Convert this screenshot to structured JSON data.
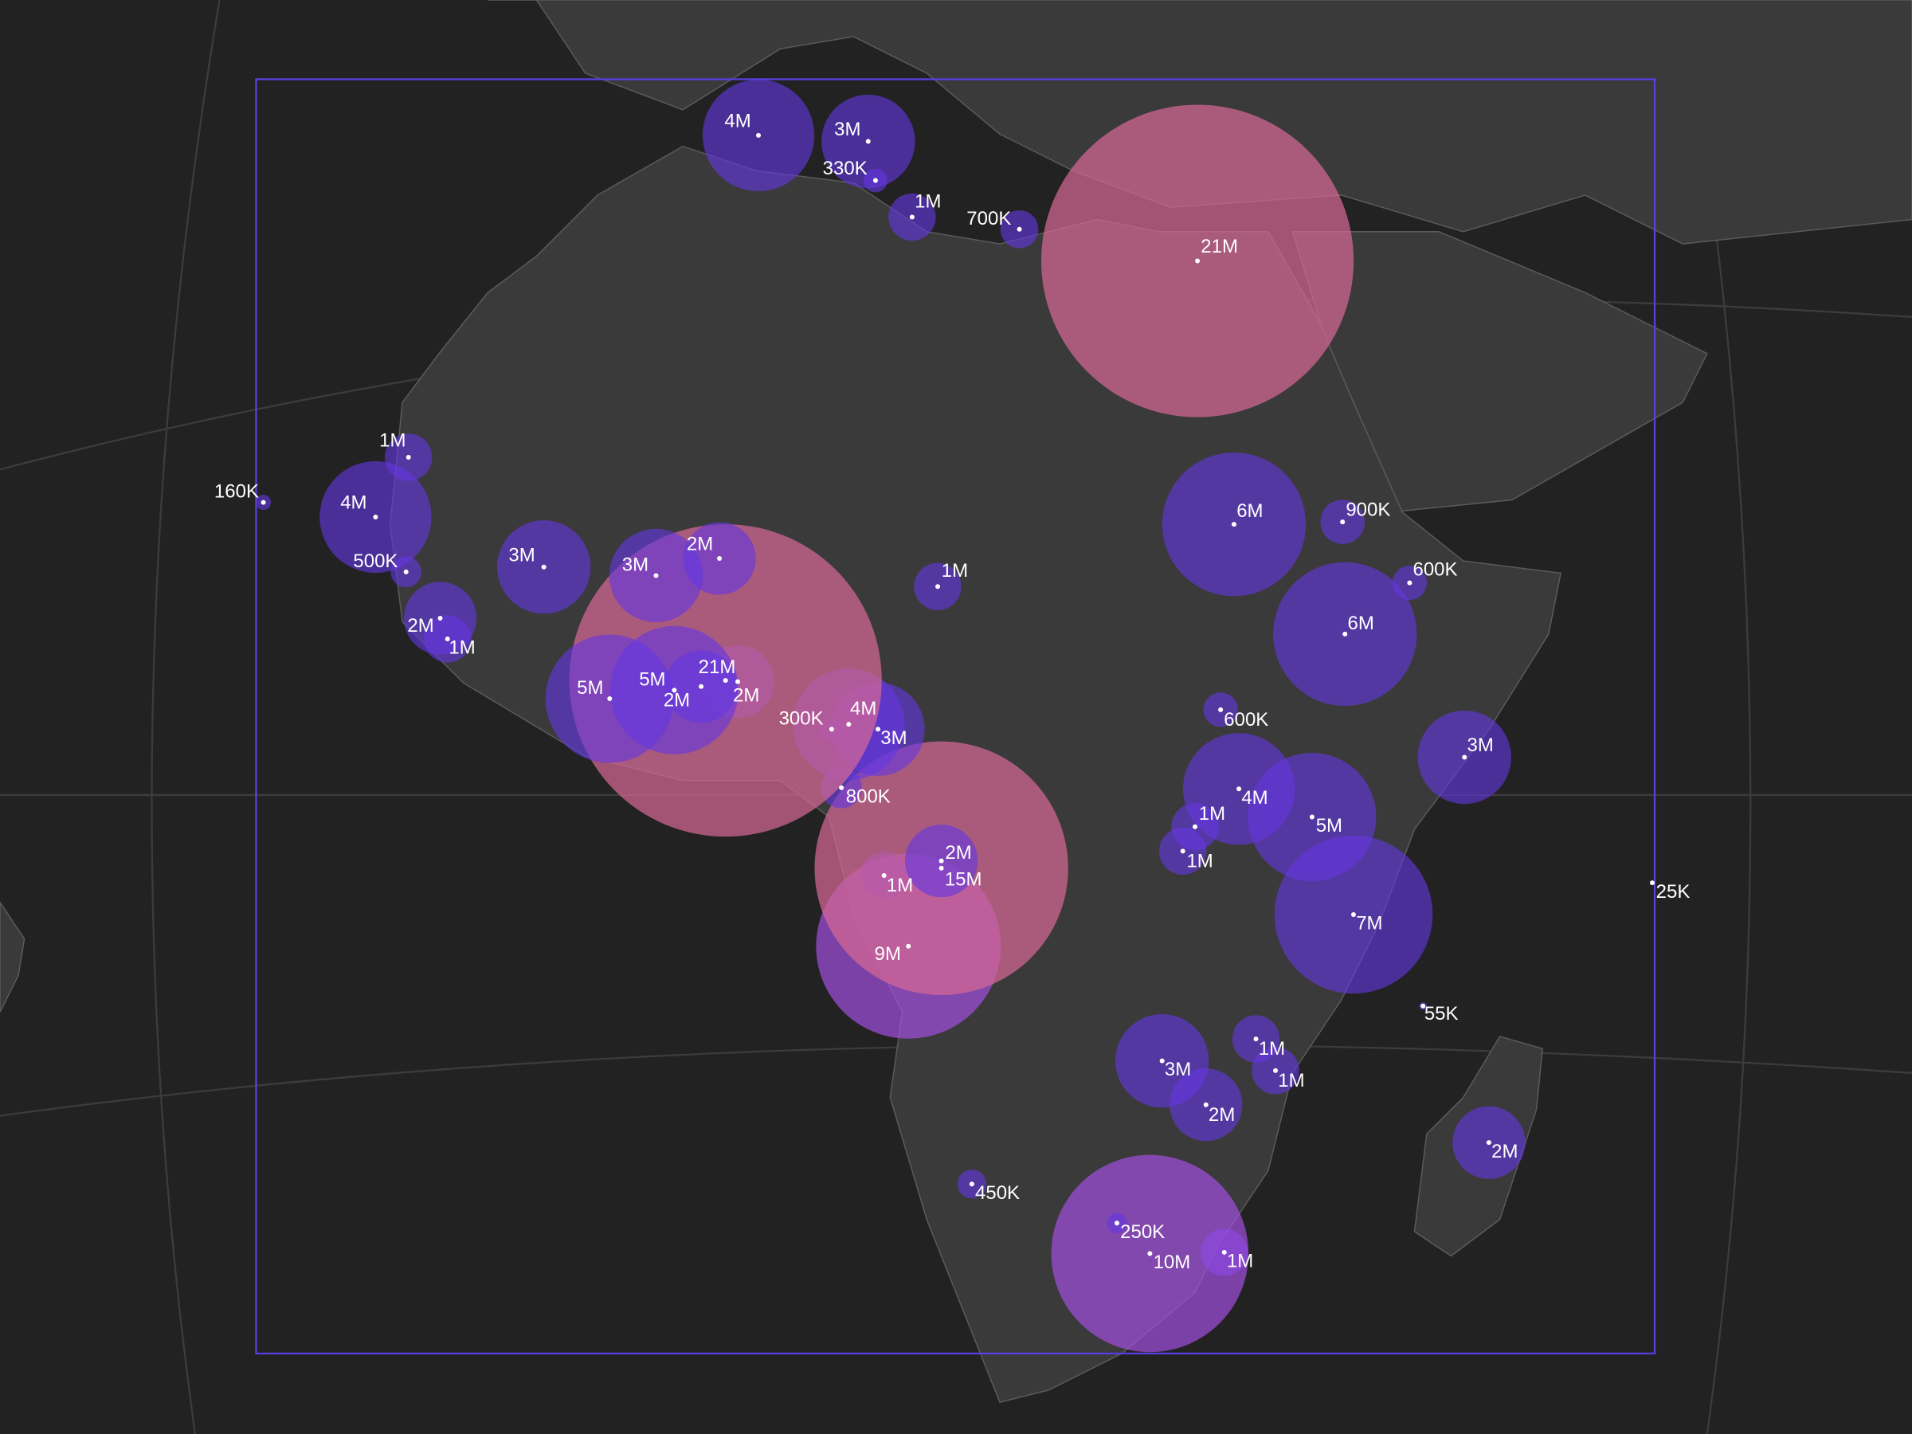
{
  "map": {
    "markers": [
      {
        "label": "4M",
        "value": 4000000
      },
      {
        "label": "3M",
        "value": 3000000
      },
      {
        "label": "330K",
        "value": 330000
      },
      {
        "label": "1M",
        "value": 1000000
      },
      {
        "label": "700K",
        "value": 700000
      },
      {
        "label": "21M",
        "value": 21000000
      },
      {
        "label": "1M",
        "value": 1000000
      },
      {
        "label": "160K",
        "value": 160000
      },
      {
        "label": "4M",
        "value": 4000000
      },
      {
        "label": "500K",
        "value": 500000
      },
      {
        "label": "3M",
        "value": 3000000
      },
      {
        "label": "3M",
        "value": 3000000
      },
      {
        "label": "2M",
        "value": 2000000
      },
      {
        "label": "2M",
        "value": 2000000
      },
      {
        "label": "1M",
        "value": 1000000
      },
      {
        "label": "5M",
        "value": 5000000
      },
      {
        "label": "5M",
        "value": 5000000
      },
      {
        "label": "2M",
        "value": 2000000
      },
      {
        "label": "21M",
        "value": 21000000
      },
      {
        "label": "2M",
        "value": 2000000
      },
      {
        "label": "1M",
        "value": 1000000
      },
      {
        "label": "300K",
        "value": 300000
      },
      {
        "label": "4M",
        "value": 4000000
      },
      {
        "label": "3M",
        "value": 3000000
      },
      {
        "label": "800K",
        "value": 800000
      },
      {
        "label": "2M",
        "value": 2000000
      },
      {
        "label": "15M",
        "value": 15000000
      },
      {
        "label": "1M",
        "value": 1000000
      },
      {
        "label": "9M",
        "value": 9000000
      },
      {
        "label": "6M",
        "value": 6000000
      },
      {
        "label": "900K",
        "value": 900000
      },
      {
        "label": "600K",
        "value": 600000
      },
      {
        "label": "6M",
        "value": 6000000
      },
      {
        "label": "600K",
        "value": 600000
      },
      {
        "label": "3M",
        "value": 3000000
      },
      {
        "label": "4M",
        "value": 4000000
      },
      {
        "label": "1M",
        "value": 1000000
      },
      {
        "label": "5M",
        "value": 5000000
      },
      {
        "label": "1M",
        "value": 1000000
      },
      {
        "label": "7M",
        "value": 7000000
      },
      {
        "label": "25K",
        "value": 25000
      },
      {
        "label": "55K",
        "value": 55000
      },
      {
        "label": "1M",
        "value": 1000000
      },
      {
        "label": "1M",
        "value": 1000000
      },
      {
        "label": "3M",
        "value": 3000000
      },
      {
        "label": "2M",
        "value": 2000000
      },
      {
        "label": "2M",
        "value": 2000000
      },
      {
        "label": "450K",
        "value": 450000
      },
      {
        "label": "250K",
        "value": 250000
      },
      {
        "label": "10M",
        "value": 10000000
      },
      {
        "label": "1M",
        "value": 1000000
      }
    ]
  }
}
